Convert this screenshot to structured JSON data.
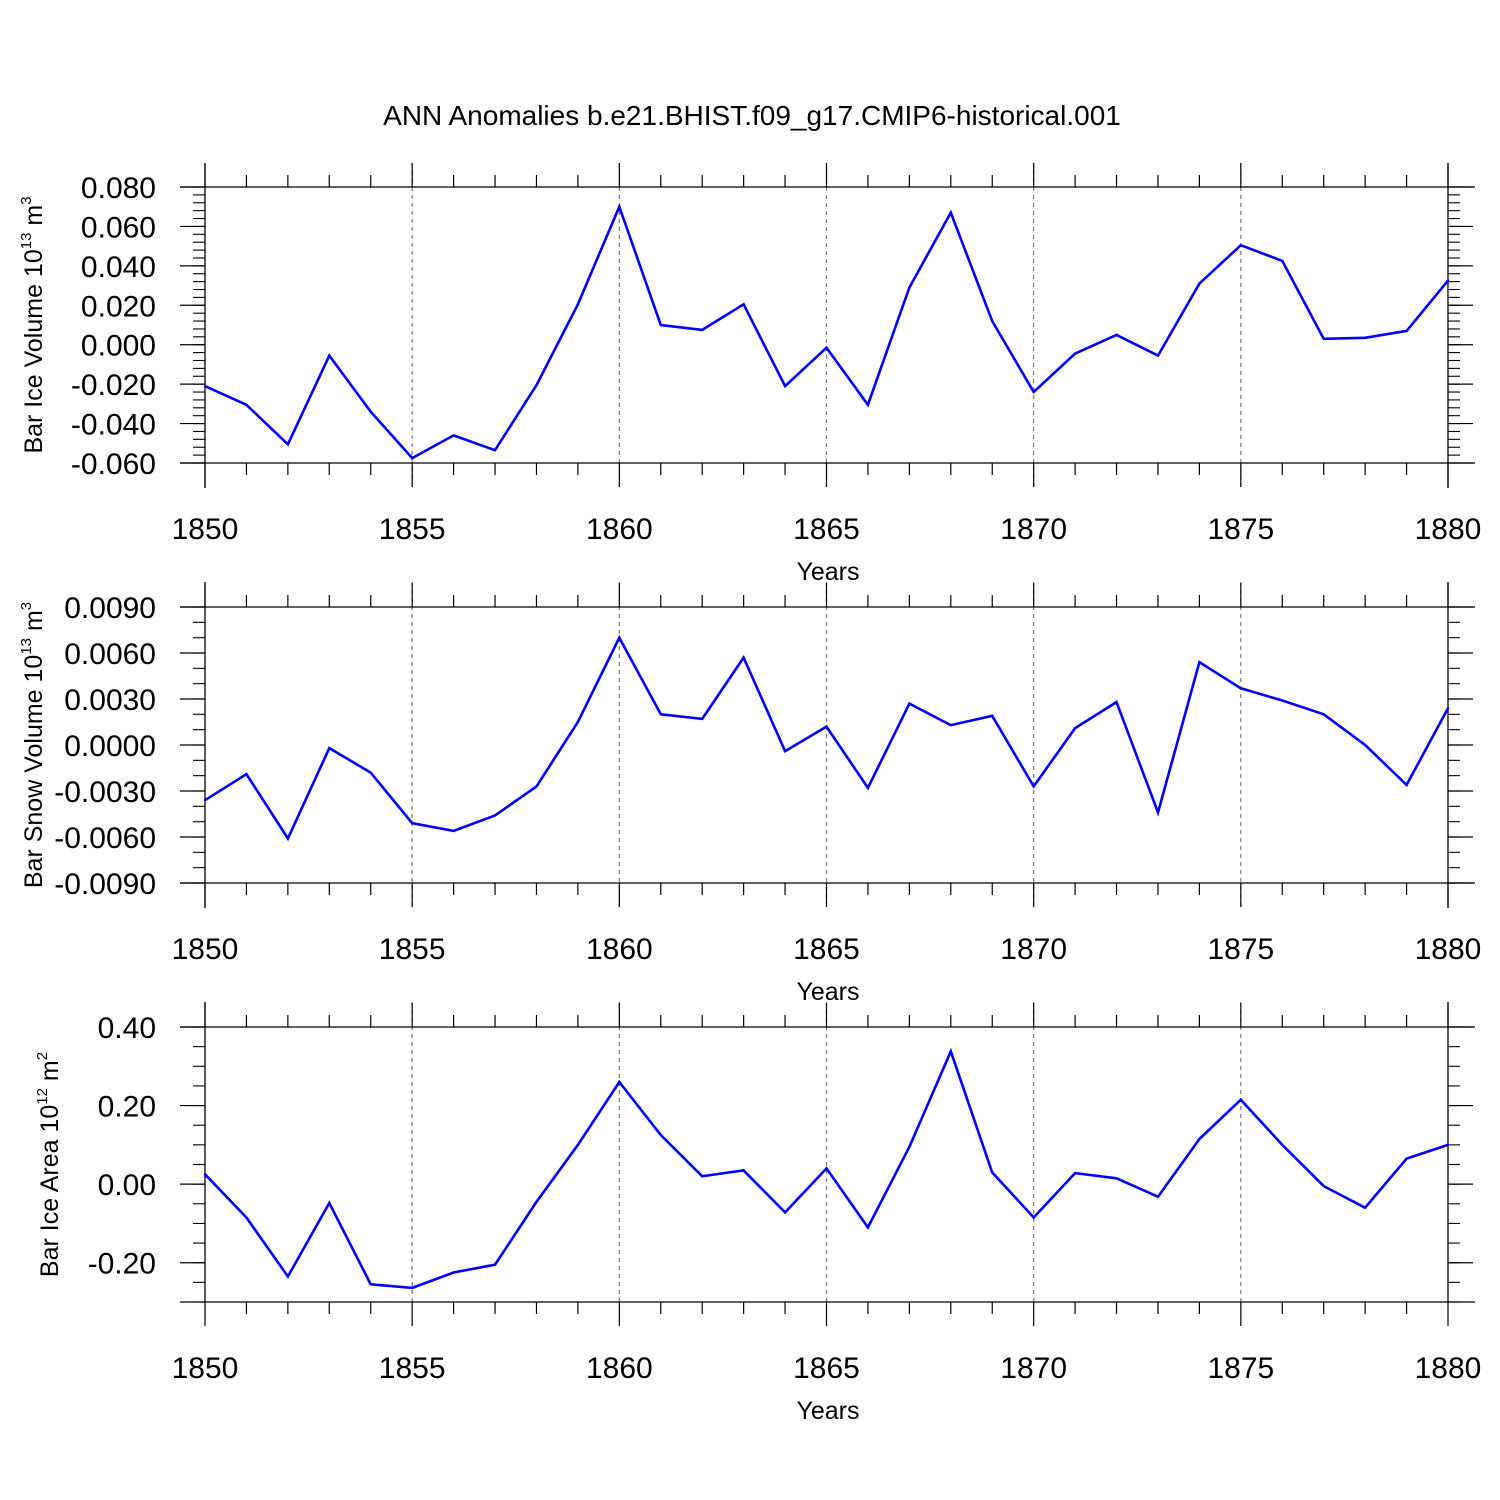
{
  "title": "ANN Anomalies b.e21.BHIST.f09_g17.CMIP6-historical.001",
  "chart_data": [
    {
      "type": "line",
      "name": "ice-volume",
      "ylabel": {
        "main": "Bar Ice Volume 10",
        "sup": "13",
        "unit": " m",
        "unit_sup": "3"
      },
      "xlabel": "Years",
      "xlim": [
        1850,
        1880
      ],
      "ylim": [
        -0.06,
        0.08
      ],
      "x_major_ticks": [
        1850,
        1855,
        1860,
        1865,
        1870,
        1875,
        1880
      ],
      "x_tick_labels": [
        "1850",
        "1855",
        "1860",
        "1865",
        "1870",
        "1875",
        "1880"
      ],
      "y_major_ticks": [
        -0.06,
        -0.04,
        -0.02,
        0.0,
        0.02,
        0.04,
        0.06,
        0.08
      ],
      "y_tick_labels": [
        "-0.060",
        "-0.040",
        "-0.020",
        "0.000",
        "0.020",
        "0.040",
        "0.060",
        "0.080"
      ],
      "y_minor_step": 0.004,
      "vertical_gridlines": [
        1855,
        1860,
        1865,
        1870,
        1875
      ],
      "color": "#0000ff",
      "x": [
        1850,
        1851,
        1852,
        1853,
        1854,
        1855,
        1856,
        1857,
        1858,
        1859,
        1860,
        1861,
        1862,
        1863,
        1864,
        1865,
        1866,
        1867,
        1868,
        1869,
        1870,
        1871,
        1872,
        1873,
        1874,
        1875,
        1876,
        1877,
        1878,
        1879,
        1880
      ],
      "y": [
        -0.021,
        -0.0305,
        -0.0505,
        -0.0055,
        -0.034,
        -0.0575,
        -0.046,
        -0.0535,
        -0.0205,
        0.0205,
        0.07,
        0.01,
        0.0075,
        0.0205,
        -0.021,
        -0.0015,
        -0.0305,
        0.029,
        0.067,
        0.012,
        -0.024,
        -0.0045,
        0.005,
        -0.0055,
        0.031,
        0.0505,
        0.0425,
        0.003,
        0.0035,
        0.007,
        0.0325
      ]
    },
    {
      "type": "line",
      "name": "snow-volume",
      "ylabel": {
        "main": "Bar Snow Volume 10",
        "sup": "13",
        "unit": " m",
        "unit_sup": "3"
      },
      "xlabel": "Years",
      "xlim": [
        1850,
        1880
      ],
      "ylim": [
        -0.009,
        0.009
      ],
      "x_major_ticks": [
        1850,
        1855,
        1860,
        1865,
        1870,
        1875,
        1880
      ],
      "x_tick_labels": [
        "1850",
        "1855",
        "1860",
        "1865",
        "1870",
        "1875",
        "1880"
      ],
      "y_major_ticks": [
        -0.009,
        -0.006,
        -0.003,
        0.0,
        0.003,
        0.006,
        0.009
      ],
      "y_tick_labels": [
        "-0.0090",
        "-0.0060",
        "-0.0030",
        "0.0000",
        "0.0030",
        "0.0060",
        "0.0090"
      ],
      "y_minor_step": 0.001,
      "vertical_gridlines": [
        1855,
        1860,
        1865,
        1870,
        1875
      ],
      "color": "#0000ff",
      "x": [
        1850,
        1851,
        1852,
        1853,
        1854,
        1855,
        1856,
        1857,
        1858,
        1859,
        1860,
        1861,
        1862,
        1863,
        1864,
        1865,
        1866,
        1867,
        1868,
        1869,
        1870,
        1871,
        1872,
        1873,
        1874,
        1875,
        1876,
        1877,
        1878,
        1879,
        1880
      ],
      "y": [
        -0.0036,
        -0.0019,
        -0.0061,
        -0.0002,
        -0.0018,
        -0.0051,
        -0.0056,
        -0.0046,
        -0.0027,
        0.0015,
        0.007,
        0.002,
        0.0017,
        0.0057,
        -0.0004,
        0.0012,
        -0.0028,
        0.0027,
        0.0013,
        0.0019,
        -0.0027,
        0.0011,
        0.0028,
        -0.0044,
        0.0054,
        0.0037,
        0.0029,
        0.002,
        0.0,
        -0.0026,
        0.0024
      ]
    },
    {
      "type": "line",
      "name": "ice-area",
      "ylabel": {
        "main": "Bar Ice Area 10",
        "sup": "12",
        "unit": " m",
        "unit_sup": "2"
      },
      "xlabel": "Years",
      "xlim": [
        1850,
        1880
      ],
      "ylim": [
        -0.3,
        0.4
      ],
      "x_major_ticks": [
        1850,
        1855,
        1860,
        1865,
        1870,
        1875,
        1880
      ],
      "x_tick_labels": [
        "1850",
        "1855",
        "1860",
        "1865",
        "1870",
        "1875",
        "1880"
      ],
      "y_major_ticks": [
        -0.2,
        0.0,
        0.2,
        0.4
      ],
      "y_tick_labels": [
        "-0.20",
        "0.00",
        "0.20",
        "0.40"
      ],
      "y_minor_step": 0.05,
      "vertical_gridlines": [
        1855,
        1860,
        1865,
        1870,
        1875
      ],
      "color": "#0000ff",
      "x": [
        1850,
        1851,
        1852,
        1853,
        1854,
        1855,
        1856,
        1857,
        1858,
        1859,
        1860,
        1861,
        1862,
        1863,
        1864,
        1865,
        1866,
        1867,
        1868,
        1869,
        1870,
        1871,
        1872,
        1873,
        1874,
        1875,
        1876,
        1877,
        1878,
        1879,
        1880
      ],
      "y": [
        0.025,
        -0.085,
        -0.235,
        -0.048,
        -0.255,
        -0.264,
        -0.225,
        -0.205,
        -0.045,
        0.1,
        0.26,
        0.125,
        0.02,
        0.035,
        -0.072,
        0.04,
        -0.11,
        0.095,
        0.338,
        0.03,
        -0.085,
        0.028,
        0.015,
        -0.032,
        0.115,
        0.215,
        0.1,
        -0.005,
        -0.06,
        0.065,
        0.1
      ]
    }
  ]
}
